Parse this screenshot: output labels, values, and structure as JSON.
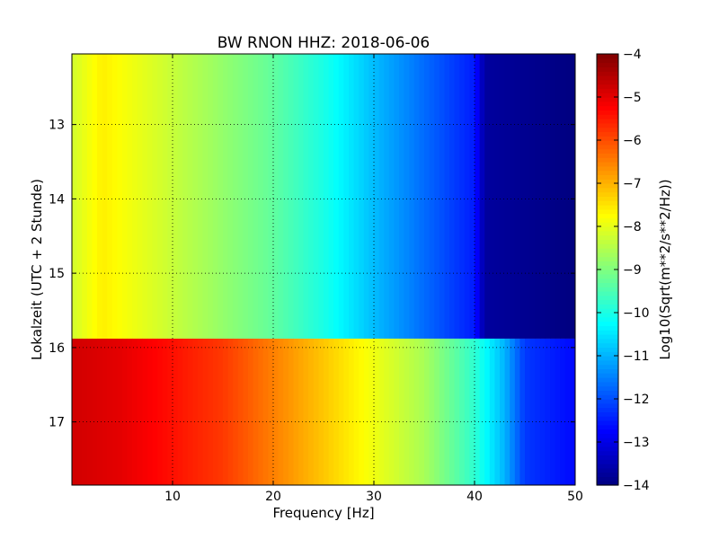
{
  "chart_data": {
    "type": "heatmap",
    "title": "BW RNON HHZ: 2018-06-06",
    "xlabel": "Frequency [Hz]",
    "ylabel": "Lokalzeit (UTC + 2 Stunde)",
    "xlim": [
      0,
      50
    ],
    "ylim": [
      12.05,
      17.85
    ],
    "y_inverted": true,
    "grid": true,
    "x_ticks": [
      {
        "value": 10,
        "label": "10"
      },
      {
        "value": 20,
        "label": "20"
      },
      {
        "value": 30,
        "label": "30"
      },
      {
        "value": 40,
        "label": "40"
      },
      {
        "value": 50,
        "label": "50"
      }
    ],
    "y_ticks": [
      {
        "value": 13,
        "label": "13"
      },
      {
        "value": 14,
        "label": "14"
      },
      {
        "value": 15,
        "label": "15"
      },
      {
        "value": 16,
        "label": "16"
      },
      {
        "value": 17,
        "label": "17"
      }
    ],
    "colorbar": {
      "label": "Log10(Sqrt(m**2/s**2/Hz))",
      "colormap": "jet",
      "range": [
        -14,
        -4
      ],
      "ticks": [
        {
          "value": -4,
          "label": "−4"
        },
        {
          "value": -5,
          "label": "−5"
        },
        {
          "value": -6,
          "label": "−6"
        },
        {
          "value": -7,
          "label": "−7"
        },
        {
          "value": -8,
          "label": "−8"
        },
        {
          "value": -9,
          "label": "−9"
        },
        {
          "value": -10,
          "label": "−10"
        },
        {
          "value": -11,
          "label": "−11"
        },
        {
          "value": -12,
          "label": "−12"
        },
        {
          "value": -13,
          "label": "−13"
        },
        {
          "value": -14,
          "label": "−14"
        }
      ]
    },
    "regions": [
      {
        "time_range": [
          12.05,
          15.88
        ],
        "frequency_profile": [
          {
            "freq": 0,
            "value": -8.2
          },
          {
            "freq": 3,
            "value": -7.6
          },
          {
            "freq": 10,
            "value": -8.3
          },
          {
            "freq": 20,
            "value": -9.3
          },
          {
            "freq": 25,
            "value": -10.0
          },
          {
            "freq": 30,
            "value": -10.9
          },
          {
            "freq": 35,
            "value": -11.7
          },
          {
            "freq": 40,
            "value": -12.5
          },
          {
            "freq": 41,
            "value": -13.7
          },
          {
            "freq": 50,
            "value": -14.0
          }
        ]
      },
      {
        "time_range": [
          15.88,
          17.85
        ],
        "frequency_profile": [
          {
            "freq": 0,
            "value": -4.8
          },
          {
            "freq": 5,
            "value": -5.0
          },
          {
            "freq": 15,
            "value": -5.8
          },
          {
            "freq": 20,
            "value": -6.5
          },
          {
            "freq": 25,
            "value": -7.2
          },
          {
            "freq": 30,
            "value": -7.9
          },
          {
            "freq": 35,
            "value": -8.6
          },
          {
            "freq": 40,
            "value": -9.8
          },
          {
            "freq": 43,
            "value": -11.0
          },
          {
            "freq": 45,
            "value": -12.2
          },
          {
            "freq": 50,
            "value": -12.7
          }
        ]
      }
    ]
  }
}
